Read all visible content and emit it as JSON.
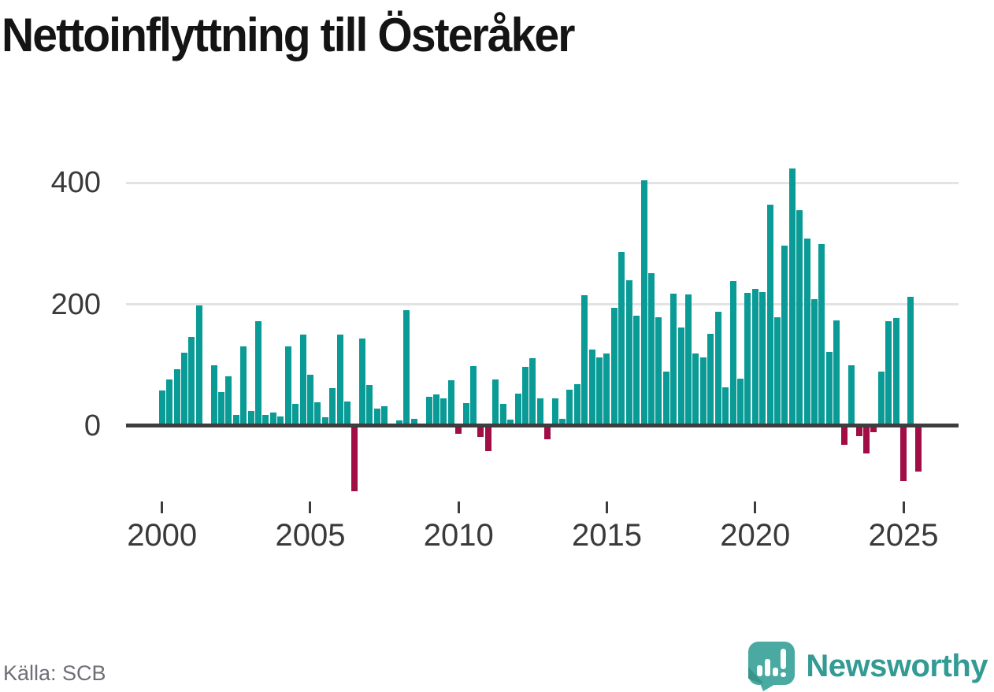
{
  "title": "Nettoinflyttning till Österåker",
  "source": "Källa: SCB",
  "branding": {
    "name": "Newsworthy"
  },
  "chart_data": {
    "type": "bar",
    "title": "Nettoinflyttning till Österåker",
    "frequency": "quarterly",
    "start_period": "2000-Q1",
    "end_period": "2025-Q3",
    "grid": "horizontal",
    "legend": "none",
    "y_ticks": [
      0,
      200,
      400
    ],
    "ylim": [
      -130,
      460
    ],
    "x_ticks": [
      {
        "label": "2000",
        "quarter_index": 0
      },
      {
        "label": "2005",
        "quarter_index": 20
      },
      {
        "label": "2010",
        "quarter_index": 40
      },
      {
        "label": "2015",
        "quarter_index": 60
      },
      {
        "label": "2020",
        "quarter_index": 80
      },
      {
        "label": "2025",
        "quarter_index": 100
      }
    ],
    "colors": {
      "positive": "#0a9b96",
      "negative": "#a10d45"
    },
    "series": [
      {
        "name": "Nettoinflyttning",
        "values": [
          58,
          76,
          93,
          120,
          146,
          198,
          0,
          100,
          56,
          82,
          18,
          131,
          25,
          173,
          18,
          22,
          16,
          131,
          36,
          150,
          84,
          39,
          14,
          62,
          150,
          40,
          -108,
          144,
          67,
          28,
          33,
          0,
          9,
          190,
          12,
          0,
          48,
          52,
          45,
          75,
          -13,
          38,
          99,
          -18,
          -42,
          76,
          36,
          11,
          53,
          97,
          112,
          45,
          -22,
          45,
          12,
          60,
          69,
          215,
          126,
          113,
          119,
          195,
          287,
          240,
          181,
          405,
          252,
          179,
          90,
          218,
          162,
          217,
          119,
          113,
          152,
          188,
          63,
          239,
          78,
          219,
          226,
          221,
          364,
          179,
          297,
          424,
          355,
          309,
          209,
          300,
          122,
          174,
          -31,
          100,
          -17,
          -45,
          -10,
          90,
          172,
          177,
          -91,
          212,
          -75
        ]
      }
    ]
  }
}
